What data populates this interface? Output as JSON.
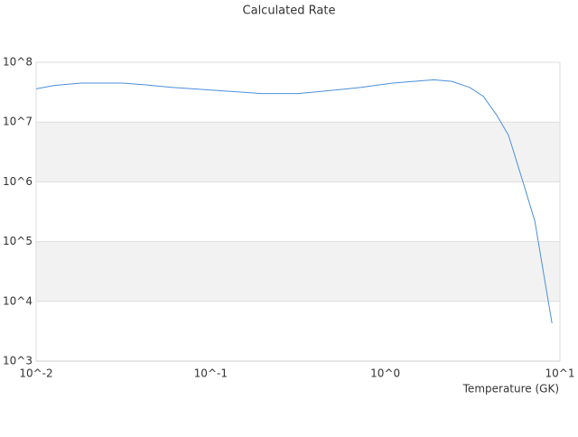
{
  "chart_data": {
    "type": "line",
    "title": "Calculated Rate",
    "x_label": "Temperature (GK)",
    "log_x": true,
    "log_y": true,
    "grid_bands": true,
    "xlim": [
      0.01,
      10
    ],
    "ylim": [
      1000,
      100000000
    ],
    "xticks": [
      {
        "value": 0.01,
        "label": "10^-2"
      },
      {
        "value": 0.1,
        "label": "10^-1"
      },
      {
        "value": 1,
        "label": "10^0"
      },
      {
        "value": 10,
        "label": "10^1"
      }
    ],
    "yticks": [
      {
        "value": 1000,
        "label": "10^3"
      },
      {
        "value": 10000,
        "label": "10^4"
      },
      {
        "value": 100000,
        "label": "10^5"
      },
      {
        "value": 1000000,
        "label": "10^6"
      },
      {
        "value": 10000000,
        "label": "10^7"
      },
      {
        "value": 100000000,
        "label": "10^8"
      }
    ],
    "x": [
      0.01,
      0.0127,
      0.0182,
      0.031,
      0.0418,
      0.0597,
      0.122,
      0.196,
      0.316,
      0.402,
      0.728,
      1.1,
      1.89,
      2.4,
      3.04,
      3.64,
      4.35,
      5.08,
      6.22,
      7.18,
      9.0
    ],
    "series": [
      {
        "color": "#4a90d9",
        "values": [
          36000000,
          41000000,
          45000000,
          45000000,
          42000000,
          38000000,
          33000000,
          30000000,
          30000000,
          32000000,
          38000000,
          45000000,
          51000000,
          48000000,
          38000000,
          27000000,
          13000000,
          6000000,
          890000,
          220000,
          4300
        ]
      }
    ]
  }
}
